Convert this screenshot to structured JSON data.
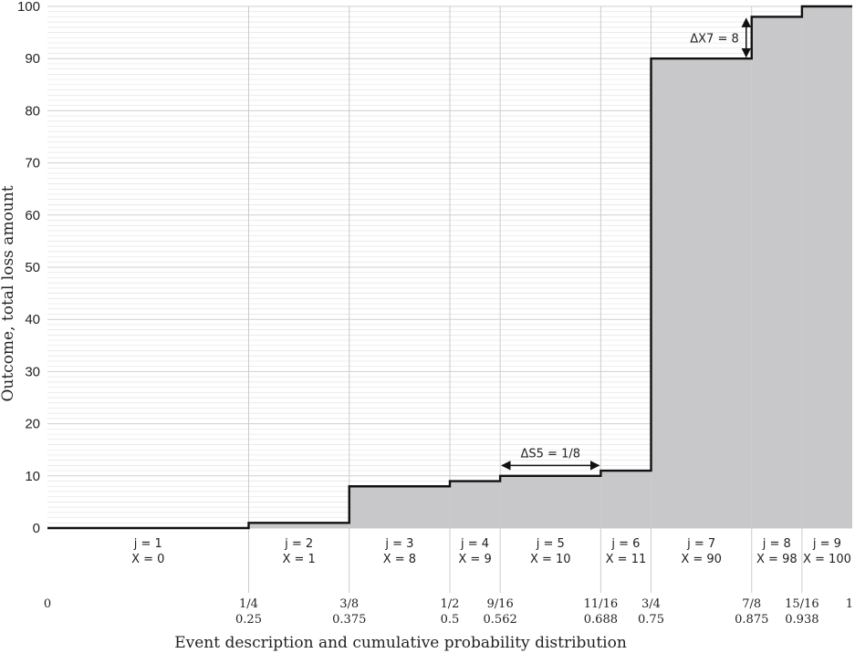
{
  "chart_data": {
    "type": "line",
    "step": true,
    "xlabel": "Event description and cumulative probability distribution",
    "ylabel": "Outcome, total loss amount",
    "xlim": [
      0,
      1
    ],
    "ylim": [
      0,
      100
    ],
    "y_ticks": [
      0,
      10,
      20,
      30,
      40,
      50,
      60,
      70,
      80,
      90,
      100
    ],
    "grid": "horizontal minor",
    "x_ticks": [
      {
        "value": 0,
        "label": "0",
        "decimal": ""
      },
      {
        "value": 0.25,
        "label": "1/4",
        "decimal": "0.25"
      },
      {
        "value": 0.375,
        "label": "3/8",
        "decimal": "0.375"
      },
      {
        "value": 0.5,
        "label": "1/2",
        "decimal": "0.5"
      },
      {
        "value": 0.5625,
        "label": "9/16",
        "decimal": "0.562"
      },
      {
        "value": 0.6875,
        "label": "11/16",
        "decimal": "0.688"
      },
      {
        "value": 0.75,
        "label": "3/4",
        "decimal": "0.75"
      },
      {
        "value": 0.875,
        "label": "7/8",
        "decimal": "0.875"
      },
      {
        "value": 0.9375,
        "label": "15/16",
        "decimal": "0.938"
      },
      {
        "value": 1,
        "label": "1",
        "decimal": ""
      }
    ],
    "events": [
      {
        "j_label": "j = 1",
        "x_label": "X = 0",
        "start": 0,
        "end": 0.25,
        "value": 0
      },
      {
        "j_label": "j = 2",
        "x_label": "X = 1",
        "start": 0.25,
        "end": 0.375,
        "value": 1
      },
      {
        "j_label": "j = 3",
        "x_label": "X = 8",
        "start": 0.375,
        "end": 0.5,
        "value": 8
      },
      {
        "j_label": "j = 4",
        "x_label": "X = 9",
        "start": 0.5,
        "end": 0.5625,
        "value": 9
      },
      {
        "j_label": "j = 5",
        "x_label": "X = 10",
        "start": 0.5625,
        "end": 0.6875,
        "value": 10
      },
      {
        "j_label": "j = 6",
        "x_label": "X = 11",
        "start": 0.6875,
        "end": 0.75,
        "value": 11
      },
      {
        "j_label": "j = 7",
        "x_label": "X = 90",
        "start": 0.75,
        "end": 0.875,
        "value": 90
      },
      {
        "j_label": "j = 8",
        "x_label": "X = 98",
        "start": 0.875,
        "end": 0.9375,
        "value": 98
      },
      {
        "j_label": "j = 9",
        "x_label": "X = 100",
        "start": 0.9375,
        "end": 1,
        "value": 100
      }
    ],
    "annotations": [
      {
        "label": "ΔS5 = 1/8",
        "kind": "horizontal",
        "x0": 0.5625,
        "x1": 0.6875,
        "y": 12
      },
      {
        "label": "ΔX7 = 8",
        "kind": "vertical",
        "x": 0.875,
        "y0": 90,
        "y1": 98
      }
    ],
    "colors": {
      "fill": "#c8c8ca",
      "line": "#111111",
      "grid_minor": "#e4e4e4",
      "grid_major": "#cfcfcf",
      "vline": "#cccccc"
    }
  }
}
